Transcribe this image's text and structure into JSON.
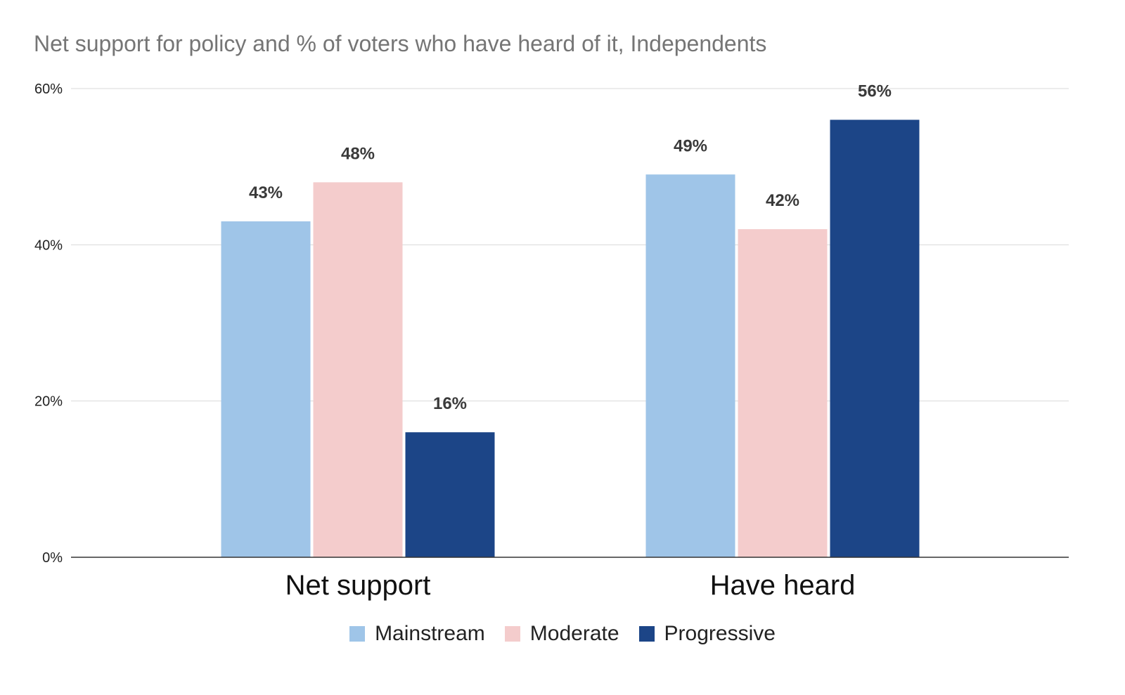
{
  "chart_data": {
    "type": "bar",
    "title": "Net support for policy and % of voters who have heard of it, Independents",
    "categories": [
      "Net support",
      "Have heard"
    ],
    "series": [
      {
        "name": "Mainstream",
        "color": "#9fc5e8",
        "values": [
          43,
          49
        ],
        "labels": [
          "43%",
          "49%"
        ]
      },
      {
        "name": "Moderate",
        "color": "#f4cccc",
        "values": [
          48,
          42
        ],
        "labels": [
          "48%",
          "42%"
        ]
      },
      {
        "name": "Progressive",
        "color": "#1c4587",
        "values": [
          16,
          56
        ],
        "labels": [
          "16%",
          "56%"
        ]
      }
    ],
    "y_ticks": [
      {
        "value": 0,
        "label": "0%"
      },
      {
        "value": 20,
        "label": "20%"
      },
      {
        "value": 40,
        "label": "40%"
      },
      {
        "value": 60,
        "label": "60%"
      }
    ],
    "ylim": [
      0,
      60
    ],
    "xlabel": "",
    "ylabel": "",
    "grid": true,
    "legend_position": "bottom"
  }
}
